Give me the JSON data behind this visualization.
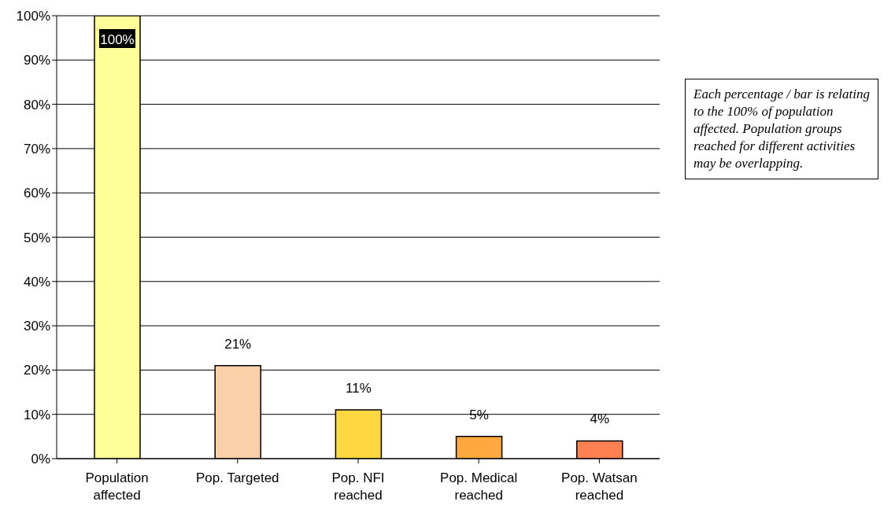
{
  "chart_data": {
    "type": "bar",
    "categories": [
      "Population affected",
      "Pop. Targeted",
      "Pop. NFI reached",
      "Pop. Medical reached",
      "Pop. Watsan reached"
    ],
    "values": [
      100,
      21,
      11,
      5,
      4
    ],
    "colors": [
      "#ffff99",
      "#fcd0a8",
      "#ffd740",
      "#ffa840",
      "#ff8050"
    ],
    "value_labels": [
      "100%",
      "21%",
      "11%",
      "5%",
      "4%"
    ],
    "ylim": [
      0,
      100
    ],
    "yticks": [
      {
        "value": 0,
        "label": "0%"
      },
      {
        "value": 10,
        "label": "10%"
      },
      {
        "value": 20,
        "label": "20%"
      },
      {
        "value": 30,
        "label": "30%"
      },
      {
        "value": 40,
        "label": "40%"
      },
      {
        "value": 50,
        "label": "50%"
      },
      {
        "value": 60,
        "label": "60%"
      },
      {
        "value": 70,
        "label": "70%"
      },
      {
        "value": 80,
        "label": "80%"
      },
      {
        "value": 90,
        "label": "90%"
      },
      {
        "value": 100,
        "label": "100%"
      }
    ],
    "grid": "y",
    "annotations": [
      "Each percentage / bar is relating to the 100% of population affected. Population groups reached for different activities may be overlapping."
    ]
  }
}
